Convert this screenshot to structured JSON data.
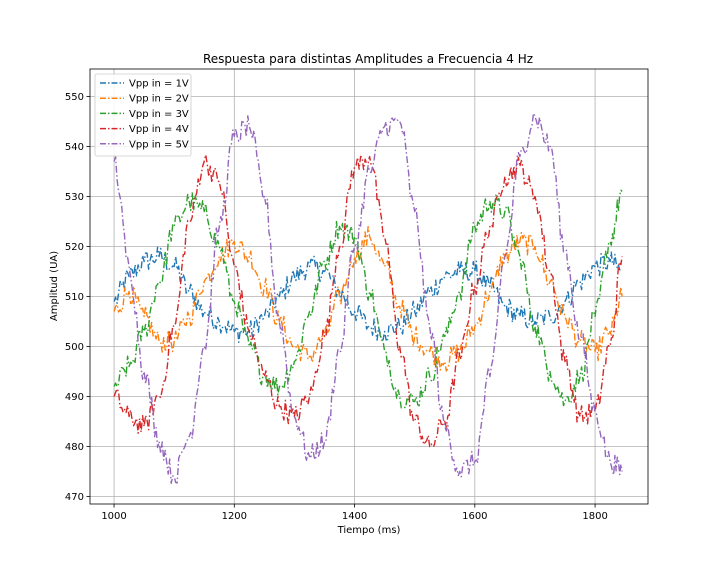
{
  "chart_data": {
    "type": "line",
    "title": "Respuesta para distintas Amplitudes a Frecuencia 4 Hz",
    "xlabel": "Tiempo (ms)",
    "ylabel": "Amplitud (UA)",
    "xlim": [
      960,
      1888
    ],
    "ylim": [
      468.5,
      555.5
    ],
    "xticks": [
      1000,
      1200,
      1400,
      1600,
      1800
    ],
    "yticks": [
      470,
      480,
      490,
      500,
      510,
      520,
      530,
      540,
      550
    ],
    "grid": true,
    "legend_position": "top-left",
    "line_style": "dash-dot",
    "series": [
      {
        "name": "Vpp in = 1V",
        "color": "#1f77b4",
        "x": [
          1000,
          1025,
          1050,
          1075,
          1100,
          1125,
          1150,
          1175,
          1200,
          1225,
          1250,
          1275,
          1300,
          1325,
          1350,
          1375,
          1400,
          1425,
          1450,
          1475,
          1500,
          1525,
          1550,
          1575,
          1600,
          1625,
          1650,
          1675,
          1700,
          1725,
          1750,
          1775,
          1800,
          1825,
          1845
        ],
        "y": [
          509,
          514,
          517,
          518,
          516,
          511,
          507,
          505,
          503,
          503,
          506,
          510,
          514,
          516,
          515,
          511,
          507,
          504,
          503,
          504,
          507,
          511,
          514,
          515,
          515,
          512,
          508,
          506,
          505,
          506,
          509,
          513,
          516,
          517,
          515
        ]
      },
      {
        "name": "Vpp in = 2V",
        "color": "#ff7f0e",
        "x": [
          1000,
          1025,
          1050,
          1075,
          1100,
          1125,
          1150,
          1175,
          1200,
          1225,
          1250,
          1275,
          1300,
          1325,
          1350,
          1375,
          1400,
          1425,
          1450,
          1475,
          1500,
          1525,
          1550,
          1575,
          1600,
          1625,
          1650,
          1675,
          1700,
          1725,
          1750,
          1775,
          1800,
          1825,
          1845
        ],
        "y": [
          507,
          511,
          506,
          501,
          501,
          506,
          513,
          518,
          521,
          518,
          512,
          505,
          500,
          498,
          502,
          510,
          518,
          522,
          516,
          508,
          502,
          499,
          497,
          499,
          504,
          511,
          518,
          521,
          520,
          513,
          506,
          501,
          499,
          503,
          510
        ]
      },
      {
        "name": "Vpp in = 3V",
        "color": "#2ca02c",
        "x": [
          1000,
          1025,
          1050,
          1075,
          1100,
          1125,
          1150,
          1175,
          1200,
          1225,
          1250,
          1275,
          1300,
          1325,
          1350,
          1375,
          1400,
          1425,
          1450,
          1475,
          1500,
          1525,
          1550,
          1575,
          1600,
          1625,
          1650,
          1675,
          1700,
          1725,
          1750,
          1775,
          1800,
          1825,
          1845
        ],
        "y": [
          492,
          496,
          503,
          513,
          524,
          529,
          527,
          520,
          509,
          500,
          494,
          492,
          497,
          507,
          517,
          524,
          522,
          511,
          499,
          490,
          489,
          494,
          502,
          511,
          524,
          529,
          527,
          518,
          504,
          495,
          489,
          494,
          506,
          521,
          531
        ]
      },
      {
        "name": "Vpp in = 4V",
        "color": "#d62728",
        "x": [
          1000,
          1025,
          1050,
          1075,
          1100,
          1125,
          1150,
          1175,
          1200,
          1225,
          1250,
          1275,
          1300,
          1325,
          1350,
          1375,
          1400,
          1425,
          1450,
          1475,
          1500,
          1525,
          1550,
          1575,
          1600,
          1625,
          1650,
          1675,
          1700,
          1725,
          1750,
          1775,
          1800,
          1825,
          1845
        ],
        "y": [
          490,
          486,
          484,
          490,
          504,
          525,
          537,
          533,
          516,
          503,
          494,
          488,
          486,
          490,
          502,
          520,
          536,
          538,
          522,
          500,
          485,
          480,
          485,
          498,
          512,
          524,
          534,
          536,
          530,
          515,
          497,
          486,
          487,
          500,
          518
        ]
      },
      {
        "name": "Vpp in = 5V",
        "color": "#9467bd",
        "x": [
          1000,
          1025,
          1050,
          1075,
          1100,
          1125,
          1150,
          1175,
          1200,
          1225,
          1250,
          1275,
          1300,
          1325,
          1350,
          1375,
          1400,
          1425,
          1450,
          1475,
          1500,
          1525,
          1550,
          1575,
          1600,
          1625,
          1650,
          1675,
          1700,
          1725,
          1750,
          1775,
          1800,
          1825,
          1845
        ],
        "y": [
          537,
          516,
          495,
          481,
          474,
          482,
          500,
          524,
          542,
          544,
          530,
          505,
          486,
          478,
          481,
          499,
          520,
          535,
          544,
          545,
          527,
          504,
          484,
          475,
          477,
          494,
          518,
          538,
          546,
          540,
          519,
          502,
          487,
          477,
          475
        ]
      }
    ]
  }
}
